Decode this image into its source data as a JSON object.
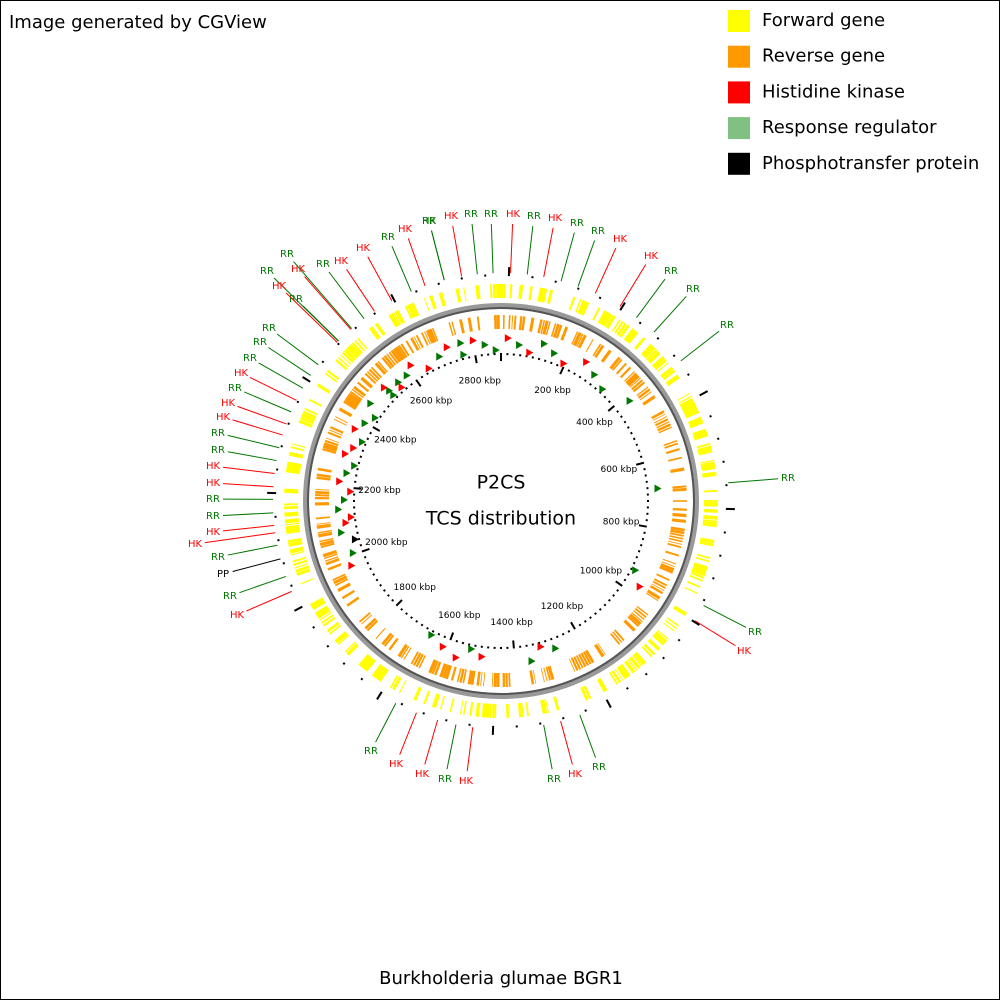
{
  "header": {
    "title": "Image generated by CGView"
  },
  "legend": [
    {
      "name": "Forward gene",
      "color": "#ffff00"
    },
    {
      "name": "Reverse gene",
      "color": "#ff9900"
    },
    {
      "name": "Histidine kinase",
      "color": "#ff0000"
    },
    {
      "name": "Response regulator",
      "color": "#80c080"
    },
    {
      "name": "Phosphotransfer protein",
      "color": "#000000"
    }
  ],
  "center": {
    "title": "P2CS",
    "subtitle": "TCS distribution"
  },
  "footer": "Burkholderia glumae BGR1",
  "scale_labels": [
    "200 kbp",
    "400 kbp",
    "600 kbp",
    "800 kbp",
    "1000 kbp",
    "1200 kbp",
    "1400 kbp",
    "1600 kbp",
    "1800 kbp",
    "2000 kbp",
    "2200 kbp",
    "2400 kbp",
    "2600 kbp",
    "2800 kbp"
  ],
  "gene_labels": [
    "HK",
    "RR",
    "RR",
    "HK",
    "RR",
    "HK",
    "RR",
    "RR",
    "HK",
    "HK",
    "RR",
    "RR",
    "RR",
    "RR",
    "RR",
    "HK",
    "RR",
    "HK",
    "RR",
    "HK",
    "RR",
    "HK",
    "HK",
    "RR",
    "HK",
    "RR",
    "PP",
    "RR",
    "HK",
    "HK",
    "RR",
    "RR",
    "HK",
    "HK",
    "RR",
    "RR",
    "HK",
    "HK",
    "RR",
    "HK",
    "RR",
    "RR",
    "RR",
    "RR",
    "RR",
    "HK",
    "RR",
    "HK",
    "HK",
    "RR",
    "HK",
    "HK",
    "RR",
    "HK",
    "RR"
  ]
}
